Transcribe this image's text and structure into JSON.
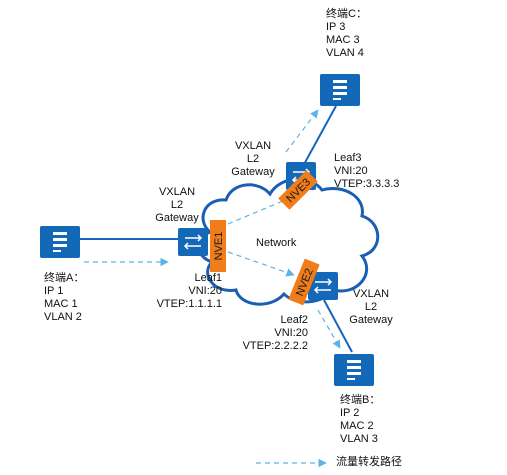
{
  "colors": {
    "cloud_fill": "#ffffff",
    "cloud_stroke": "#1a5fb4",
    "device_fill": "#1368b8",
    "link": "#1565c0",
    "flow_arrow": "#5ab4e6",
    "nve_fill": "#f07c1a",
    "nve_text": "#1a1a1a"
  },
  "network": {
    "label": "Network"
  },
  "terminals": {
    "a": {
      "name": "终端A：",
      "ip": "IP 1",
      "mac": "MAC 1",
      "vlan": "VLAN 2"
    },
    "b": {
      "name": "终端B：",
      "ip": "IP 2",
      "mac": "MAC 2",
      "vlan": "VLAN 3"
    },
    "c": {
      "name": "终端C：",
      "ip": "IP 3",
      "mac": "MAC 3",
      "vlan": "VLAN 4"
    }
  },
  "leaves": {
    "leaf1": {
      "name": "Leaf1",
      "vni": "VNI:20",
      "vtep": "VTEP:1.1.1.1",
      "nve": "NVE1",
      "gateway": [
        "VXLAN",
        "L2",
        "Gateway"
      ]
    },
    "leaf2": {
      "name": "Leaf2",
      "vni": "VNI:20",
      "vtep": "VTEP:2.2.2.2",
      "nve": "NVE2",
      "gateway": [
        "VXLAN",
        "L2",
        "Gateway"
      ]
    },
    "leaf3": {
      "name": "Leaf3",
      "vni": "VNI:20",
      "vtep": "VTEP:3.3.3.3",
      "nve": "NVE3",
      "gateway": [
        "VXLAN",
        "L2",
        "Gateway"
      ]
    }
  },
  "legend": {
    "flow_path": "流量转发路径"
  }
}
